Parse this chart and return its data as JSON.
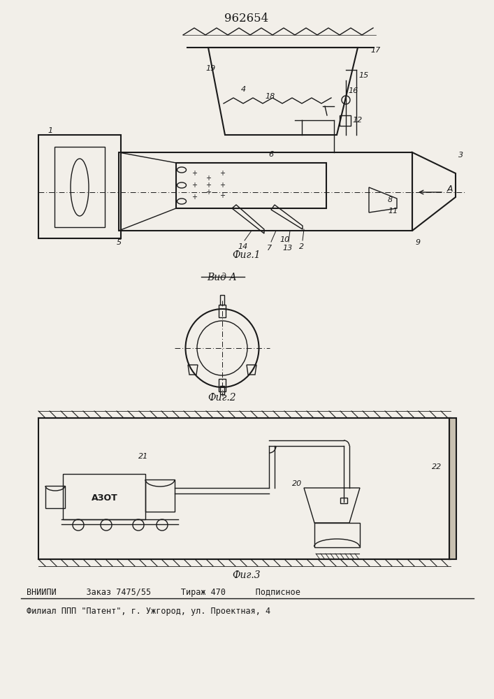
{
  "title": "962654",
  "bg_color": "#f2efe9",
  "line_color": "#1a1a1a",
  "fig1_label": "Фиг.1",
  "fig2_label": "Фиг.2",
  "fig3_label": "Фиг.3",
  "view_label": "Вид А",
  "footer_line1": "ВНИИПИ      Заказ 7475/55      Тираж 470      Подписное",
  "footer_line2": "Филиал ППП \"Патент\", г. Ужгород, ул. Проектная, 4"
}
